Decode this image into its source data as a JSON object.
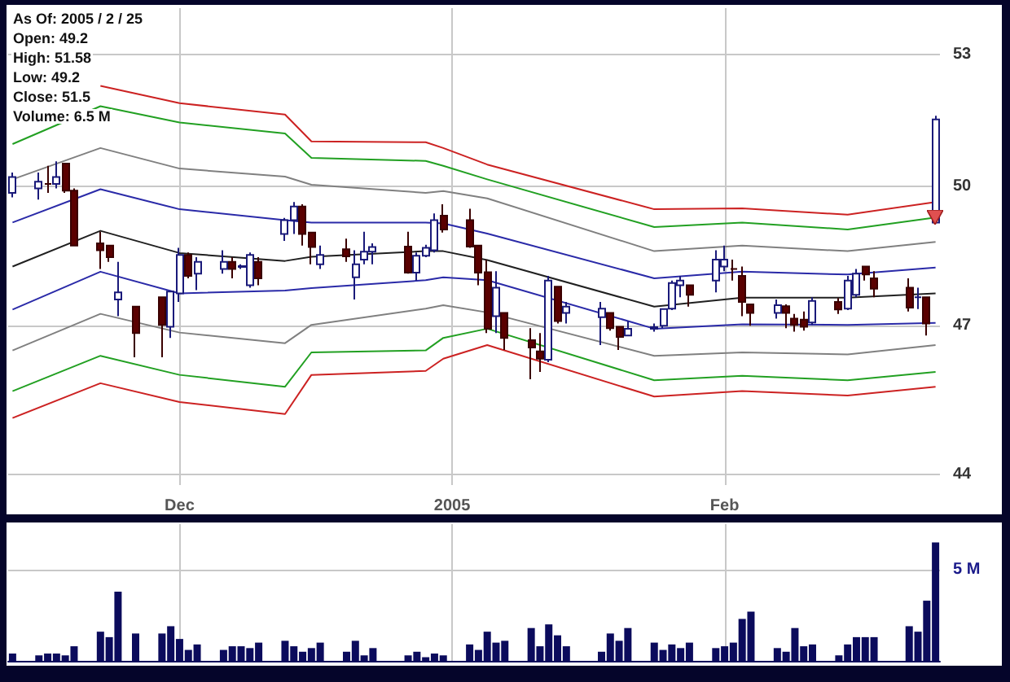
{
  "chart_data": [
    {
      "type": "candlestick",
      "annotations": [
        "As Of: 2005 / 2 / 25",
        "Open: 49.2",
        "High: 51.58",
        "Low: 49.2",
        "Close: 51.5",
        "Volume: 6.5 M"
      ],
      "x": [
        "2004-11-12",
        "2004-11-15",
        "2004-11-16",
        "2004-11-17",
        "2004-11-18",
        "2004-11-19",
        "2004-11-22",
        "2004-11-23",
        "2004-11-24",
        "2004-11-26",
        "2004-11-29",
        "2004-11-30",
        "2004-12-01",
        "2004-12-02",
        "2004-12-03",
        "2004-12-06",
        "2004-12-07",
        "2004-12-08",
        "2004-12-09",
        "2004-12-10",
        "2004-12-13",
        "2004-12-14",
        "2004-12-15",
        "2004-12-16",
        "2004-12-17",
        "2004-12-20",
        "2004-12-21",
        "2004-12-22",
        "2004-12-23",
        "2004-12-27",
        "2004-12-28",
        "2004-12-29",
        "2004-12-30",
        "2004-12-31",
        "2005-01-03",
        "2005-01-04",
        "2005-01-05",
        "2005-01-06",
        "2005-01-07",
        "2005-01-10",
        "2005-01-11",
        "2005-01-12",
        "2005-01-13",
        "2005-01-14",
        "2005-01-18",
        "2005-01-19",
        "2005-01-20",
        "2005-01-21",
        "2005-01-24",
        "2005-01-25",
        "2005-01-26",
        "2005-01-27",
        "2005-01-28",
        "2005-01-31",
        "2005-02-01",
        "2005-02-02",
        "2005-02-03",
        "2005-02-04",
        "2005-02-07",
        "2005-02-08",
        "2005-02-09",
        "2005-02-10",
        "2005-02-11",
        "2005-02-14",
        "2005-02-15",
        "2005-02-16",
        "2005-02-17",
        "2005-02-18",
        "2005-02-22",
        "2005-02-23",
        "2005-02-24",
        "2005-02-25"
      ],
      "ohlc": [
        [
          49.85,
          50.3,
          49.75,
          50.2
        ],
        [
          49.95,
          50.3,
          49.7,
          50.1
        ],
        [
          50.05,
          50.45,
          49.85,
          50.05
        ],
        [
          50.05,
          50.55,
          49.95,
          50.2
        ],
        [
          50.5,
          50.5,
          49.85,
          49.9
        ],
        [
          49.9,
          49.95,
          48.7,
          48.7
        ],
        [
          48.75,
          49.0,
          48.2,
          48.6
        ],
        [
          48.7,
          48.7,
          48.35,
          48.45
        ],
        [
          47.55,
          48.35,
          47.2,
          47.7
        ],
        [
          47.4,
          47.4,
          46.35,
          46.85
        ],
        [
          47.6,
          47.6,
          46.35,
          47.02
        ],
        [
          46.98,
          47.72,
          46.75,
          47.72
        ],
        [
          47.68,
          48.65,
          47.5,
          48.5
        ],
        [
          48.5,
          48.55,
          48.0,
          48.05
        ],
        [
          48.1,
          48.45,
          47.75,
          48.35
        ],
        [
          48.2,
          48.6,
          48.1,
          48.35
        ],
        [
          48.35,
          48.45,
          48.0,
          48.2
        ],
        [
          48.24,
          48.3,
          48.2,
          48.26
        ],
        [
          47.85,
          48.55,
          47.8,
          48.5
        ],
        [
          48.35,
          48.45,
          47.85,
          48.0
        ],
        [
          48.95,
          49.3,
          48.8,
          49.25
        ],
        [
          49.25,
          49.65,
          48.95,
          49.55
        ],
        [
          49.55,
          49.6,
          48.7,
          48.95
        ],
        [
          48.98,
          48.98,
          48.3,
          48.67
        ],
        [
          48.3,
          48.7,
          48.2,
          48.5
        ],
        [
          48.62,
          48.85,
          48.35,
          48.47
        ],
        [
          48.02,
          48.6,
          47.55,
          48.3
        ],
        [
          48.4,
          49.0,
          48.3,
          48.57
        ],
        [
          48.57,
          48.75,
          48.3,
          48.67
        ],
        [
          48.68,
          49.0,
          48.1,
          48.12
        ],
        [
          48.12,
          48.55,
          47.95,
          48.48
        ],
        [
          48.48,
          48.72,
          48.45,
          48.65
        ],
        [
          48.6,
          49.4,
          48.55,
          49.25
        ],
        [
          49.35,
          49.6,
          48.98,
          49.05
        ],
        [
          49.25,
          49.5,
          48.65,
          48.68
        ],
        [
          48.7,
          48.7,
          47.85,
          48.12
        ],
        [
          48.13,
          48.4,
          46.85,
          46.94
        ],
        [
          47.2,
          48.15,
          46.85,
          47.8
        ],
        [
          47.27,
          47.27,
          46.5,
          46.75
        ],
        [
          46.7,
          46.95,
          45.9,
          46.55
        ],
        [
          46.47,
          46.85,
          46.05,
          46.32
        ],
        [
          46.3,
          48.05,
          46.25,
          47.95
        ],
        [
          47.82,
          47.82,
          47.05,
          47.1
        ],
        [
          47.27,
          47.5,
          47.05,
          47.4
        ],
        [
          47.18,
          47.5,
          46.6,
          47.36
        ],
        [
          47.27,
          47.27,
          46.9,
          46.95
        ],
        [
          46.98,
          46.98,
          46.5,
          46.77
        ],
        [
          46.8,
          47.1,
          46.8,
          46.94
        ],
        [
          46.94,
          47.05,
          46.88,
          46.97
        ],
        [
          47.0,
          47.35,
          46.95,
          47.35
        ],
        [
          47.36,
          47.95,
          47.33,
          47.9
        ],
        [
          47.85,
          48.05,
          47.6,
          47.95
        ],
        [
          47.85,
          47.85,
          47.4,
          47.65
        ],
        [
          47.95,
          48.6,
          47.7,
          48.4
        ],
        [
          48.25,
          48.7,
          48.15,
          48.4
        ],
        [
          48.2,
          48.4,
          47.95,
          48.2
        ],
        [
          48.05,
          48.25,
          47.2,
          47.5
        ],
        [
          47.45,
          47.45,
          47.0,
          47.27
        ],
        [
          47.27,
          47.55,
          47.15,
          47.43
        ],
        [
          47.41,
          47.45,
          46.95,
          47.27
        ],
        [
          47.15,
          47.25,
          46.88,
          47.02
        ],
        [
          47.13,
          47.3,
          46.9,
          46.98
        ],
        [
          47.07,
          47.6,
          47.02,
          47.52
        ],
        [
          47.5,
          47.58,
          47.25,
          47.34
        ],
        [
          47.36,
          48.05,
          47.33,
          47.95
        ],
        [
          47.65,
          48.2,
          47.6,
          48.1
        ],
        [
          48.25,
          48.25,
          47.95,
          48.08
        ],
        [
          48.0,
          48.15,
          47.6,
          47.78
        ],
        [
          47.8,
          48.0,
          47.3,
          47.38
        ],
        [
          47.6,
          47.8,
          47.35,
          47.6
        ],
        [
          47.6,
          47.6,
          46.8,
          47.05
        ],
        [
          49.2,
          51.58,
          49.2,
          51.5
        ]
      ],
      "series": [
        {
          "type": "line",
          "color": "#cc2222",
          "x": [
            "2004-11-22",
            "2004-12-01",
            "2004-12-13",
            "2004-12-16",
            "2004-12-29",
            "2004-12-31",
            "2005-01-05",
            "2005-01-24",
            "2005-02-03",
            "2005-02-15",
            "2005-02-25"
          ],
          "values": [
            52.27,
            51.87,
            51.61,
            51.0,
            50.98,
            50.85,
            50.48,
            49.49,
            49.51,
            49.37,
            49.65
          ]
        },
        {
          "type": "line",
          "color": "#22a022",
          "x": [
            "2004-11-12",
            "2004-11-22",
            "2004-12-01",
            "2004-12-13",
            "2004-12-16",
            "2004-12-29",
            "2004-12-31",
            "2005-01-05",
            "2005-01-24",
            "2005-02-03",
            "2005-02-15",
            "2005-02-25"
          ],
          "values": [
            50.94,
            51.8,
            51.43,
            51.18,
            50.63,
            50.56,
            50.45,
            50.15,
            49.1,
            49.2,
            49.05,
            49.31
          ]
        },
        {
          "type": "line",
          "color": "#808080",
          "x": [
            "2004-11-12",
            "2004-11-22",
            "2004-12-01",
            "2004-12-13",
            "2004-12-16",
            "2004-12-29",
            "2004-12-31",
            "2005-01-05",
            "2005-01-24",
            "2005-02-03",
            "2005-02-15",
            "2005-02-25"
          ],
          "values": [
            50.15,
            50.85,
            50.39,
            50.21,
            50.03,
            49.85,
            49.89,
            49.73,
            48.58,
            48.7,
            48.58,
            48.78
          ]
        },
        {
          "type": "line",
          "color": "#2a2aa8",
          "x": [
            "2004-11-12",
            "2004-11-22",
            "2004-12-01",
            "2004-12-13",
            "2004-12-16",
            "2004-12-29",
            "2004-12-31",
            "2005-01-05",
            "2005-01-24",
            "2005-02-03",
            "2005-02-15",
            "2005-02-25"
          ],
          "values": [
            49.2,
            49.93,
            49.49,
            49.25,
            49.2,
            49.2,
            49.18,
            48.96,
            48.0,
            48.14,
            48.08,
            48.23
          ]
        },
        {
          "type": "line",
          "color": "#202020",
          "x": [
            "2004-11-12",
            "2004-11-22",
            "2004-12-01",
            "2004-12-13",
            "2004-12-16",
            "2004-12-29",
            "2004-12-31",
            "2005-01-05",
            "2005-01-24",
            "2005-02-03",
            "2005-02-15",
            "2005-02-25"
          ],
          "values": [
            48.25,
            49.02,
            48.54,
            48.37,
            48.46,
            48.58,
            48.58,
            48.39,
            47.4,
            47.59,
            47.59,
            47.68
          ]
        },
        {
          "type": "line",
          "color": "#2a2aa8",
          "x": [
            "2004-11-12",
            "2004-11-22",
            "2004-12-01",
            "2004-12-13",
            "2004-12-16",
            "2004-12-29",
            "2004-12-31",
            "2005-01-05",
            "2005-01-24",
            "2005-02-03",
            "2005-02-15",
            "2005-02-25"
          ],
          "values": [
            47.34,
            48.14,
            47.68,
            47.74,
            47.79,
            47.96,
            48.02,
            47.96,
            46.94,
            47.03,
            47.02,
            47.06
          ]
        },
        {
          "type": "line",
          "color": "#808080",
          "x": [
            "2004-11-12",
            "2004-11-22",
            "2004-12-01",
            "2004-12-13",
            "2004-12-16",
            "2004-12-29",
            "2004-12-31",
            "2005-01-05",
            "2005-01-24",
            "2005-02-03",
            "2005-02-15",
            "2005-02-25"
          ],
          "values": [
            46.49,
            47.25,
            46.86,
            46.64,
            47.02,
            47.36,
            47.43,
            47.28,
            46.38,
            46.45,
            46.41,
            46.6
          ]
        },
        {
          "type": "line",
          "color": "#22a022",
          "x": [
            "2004-11-12",
            "2004-11-22",
            "2004-12-01",
            "2004-12-13",
            "2004-12-16",
            "2004-12-29",
            "2004-12-31",
            "2005-01-05",
            "2005-01-24",
            "2005-02-03",
            "2005-02-15",
            "2005-02-25"
          ],
          "values": [
            45.66,
            46.38,
            45.99,
            45.75,
            46.45,
            46.49,
            46.75,
            46.94,
            45.88,
            45.97,
            45.88,
            46.05
          ]
        },
        {
          "type": "line",
          "color": "#cc2222",
          "x": [
            "2004-11-12",
            "2004-11-22",
            "2004-12-01",
            "2004-12-13",
            "2004-12-16",
            "2004-12-29",
            "2004-12-31",
            "2005-01-05",
            "2005-01-24",
            "2005-02-03",
            "2005-02-15",
            "2005-02-25"
          ],
          "values": [
            45.12,
            45.82,
            45.44,
            45.2,
            45.99,
            46.07,
            46.32,
            46.6,
            45.55,
            45.66,
            45.57,
            45.75
          ]
        }
      ],
      "xlim": [
        "2004-11-11T12:00",
        "2005-02-25T12:00"
      ],
      "xticks": [
        {
          "value": "2004-12-01",
          "label": "Dec"
        },
        {
          "value": "2005-01-01",
          "label": "2005"
        },
        {
          "value": "2005-02-01",
          "label": "Feb"
        }
      ],
      "ylim": [
        43.8,
        54.1
      ],
      "yticks": [
        44,
        47,
        50,
        53
      ],
      "log": true,
      "grid": true,
      "marker": "none",
      "line_style": "solid"
    },
    {
      "type": "bar",
      "x": [
        "2004-11-12",
        "2004-11-15",
        "2004-11-16",
        "2004-11-17",
        "2004-11-18",
        "2004-11-19",
        "2004-11-22",
        "2004-11-23",
        "2004-11-24",
        "2004-11-26",
        "2004-11-29",
        "2004-11-30",
        "2004-12-01",
        "2004-12-02",
        "2004-12-03",
        "2004-12-06",
        "2004-12-07",
        "2004-12-08",
        "2004-12-09",
        "2004-12-10",
        "2004-12-13",
        "2004-12-14",
        "2004-12-15",
        "2004-12-16",
        "2004-12-17",
        "2004-12-20",
        "2004-12-21",
        "2004-12-22",
        "2004-12-23",
        "2004-12-27",
        "2004-12-28",
        "2004-12-29",
        "2004-12-30",
        "2004-12-31",
        "2005-01-03",
        "2005-01-04",
        "2005-01-05",
        "2005-01-06",
        "2005-01-07",
        "2005-01-10",
        "2005-01-11",
        "2005-01-12",
        "2005-01-13",
        "2005-01-14",
        "2005-01-18",
        "2005-01-19",
        "2005-01-20",
        "2005-01-21",
        "2005-01-24",
        "2005-01-25",
        "2005-01-26",
        "2005-01-27",
        "2005-01-28",
        "2005-01-31",
        "2005-02-01",
        "2005-02-02",
        "2005-02-03",
        "2005-02-04",
        "2005-02-07",
        "2005-02-08",
        "2005-02-09",
        "2005-02-10",
        "2005-02-11",
        "2005-02-14",
        "2005-02-15",
        "2005-02-16",
        "2005-02-17",
        "2005-02-18",
        "2005-02-22",
        "2005-02-23",
        "2005-02-24",
        "2005-02-25"
      ],
      "values": [
        0.4,
        0.3,
        0.4,
        0.4,
        0.3,
        0.8,
        1.6,
        1.3,
        3.8,
        1.5,
        1.5,
        1.9,
        1.2,
        0.6,
        0.9,
        0.6,
        0.8,
        0.8,
        0.7,
        1.0,
        1.1,
        0.8,
        0.5,
        0.7,
        1.0,
        0.5,
        1.1,
        0.3,
        0.7,
        0.3,
        0.5,
        0.2,
        0.4,
        0.3,
        0.9,
        0.6,
        1.6,
        1.0,
        1.1,
        1.8,
        0.8,
        2.0,
        1.4,
        0.8,
        0.5,
        1.5,
        1.1,
        1.8,
        1.0,
        0.6,
        0.9,
        0.7,
        1.0,
        0.7,
        0.8,
        1.0,
        2.3,
        2.7,
        0.7,
        0.5,
        1.8,
        0.8,
        0.9,
        0.3,
        0.9,
        1.3,
        1.3,
        1.3,
        1.9,
        1.6,
        3.3,
        6.5
      ],
      "color": "#0b0b5c",
      "xlim": [
        "2004-11-11T12:00",
        "2005-02-25T12:00"
      ],
      "xticks": [
        {
          "value": "2004-12-01",
          "label": null
        },
        {
          "value": "2005-01-01",
          "label": null
        },
        {
          "value": "2005-02-01",
          "label": null
        }
      ],
      "ylim": [
        0,
        7.5
      ],
      "yticks": [
        {
          "value": 5,
          "label": "5 M"
        }
      ],
      "tick_labels": "y",
      "grid": true
    }
  ]
}
